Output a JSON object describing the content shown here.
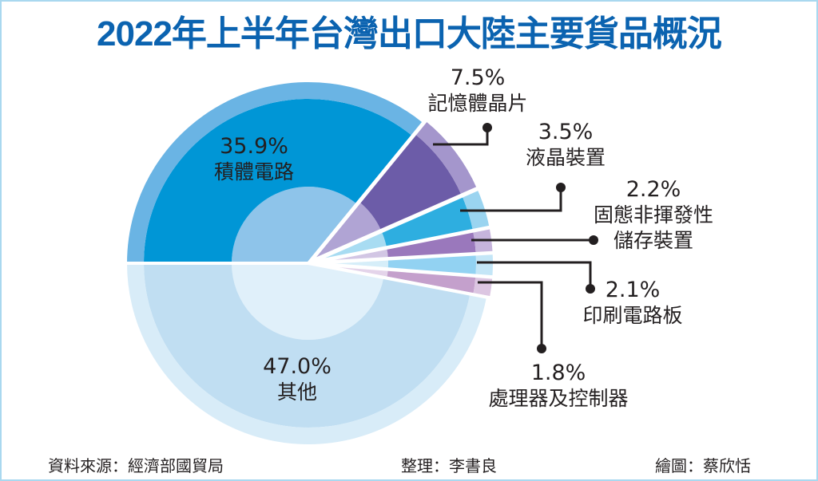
{
  "chart_data": {
    "type": "pie",
    "title": "2022年上半年台灣出口大陸主要貨品概況",
    "unit": "%",
    "slices": [
      {
        "name": "積體電路",
        "value": 35.9,
        "label": "35.9%",
        "colors": [
          "#8ec4ea",
          "#0096d6",
          "#6ab4e4"
        ]
      },
      {
        "name": "記憶體晶片",
        "value": 7.5,
        "label": "7.5%",
        "colors": [
          "#b0a4d4",
          "#6c5ca8",
          "#a496cc"
        ]
      },
      {
        "name": "液晶裝置",
        "value": 3.5,
        "label": "3.5%",
        "colors": [
          "#a8dcf2",
          "#2eaee0",
          "#9ad4f0"
        ]
      },
      {
        "name": "固態非揮發性儲存裝置",
        "name_lines": [
          "固態非揮發性",
          "儲存裝置"
        ],
        "value": 2.2,
        "label": "2.2%",
        "colors": [
          "#d2c6e4",
          "#9a78bc",
          "#c6b4dc"
        ]
      },
      {
        "name": "印刷電路板",
        "value": 2.1,
        "label": "2.1%",
        "colors": [
          "#d6eef9",
          "#92d2f2",
          "#c4e6f7"
        ]
      },
      {
        "name": "處理器及控制器",
        "value": 1.8,
        "label": "1.8%",
        "colors": [
          "#e4d4ea",
          "#c4a0cc",
          "#dcc6e2"
        ]
      },
      {
        "name": "其他",
        "value": 47.0,
        "label": "47.0%",
        "colors": [
          "#e0f0fa",
          "#c0def2",
          "#d8ecf8"
        ]
      }
    ],
    "start": "left, clockwise"
  },
  "footer": {
    "source": "資料來源：經濟部國貿局",
    "editor": "整理：李書良",
    "illustrator": "繪圖：蔡欣恬"
  }
}
